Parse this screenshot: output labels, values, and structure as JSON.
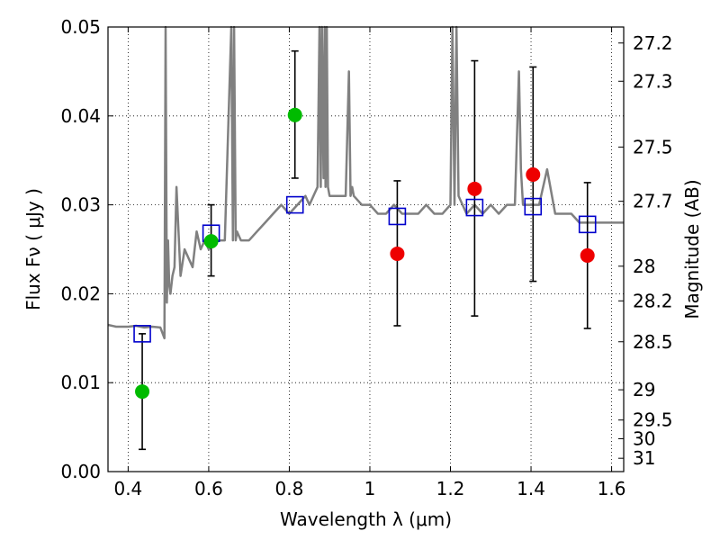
{
  "chart_data": {
    "type": "scatter",
    "title": "",
    "xlabel": "Wavelength  λ (μm)",
    "ylabel": "Flux  Fν  ( μJy )",
    "ylabel_right": "Magnitude (AB)",
    "xlim": [
      0.35,
      1.63
    ],
    "ylim": [
      0.0,
      0.05
    ],
    "grid": true,
    "x_ticks": [
      0.4,
      0.6,
      0.8,
      1.0,
      1.2,
      1.4,
      1.6
    ],
    "x_tick_labels": [
      "0.4",
      "0.6",
      "0.8",
      "1",
      "1.2",
      "1.4",
      "1.6"
    ],
    "y_ticks": [
      0.0,
      0.01,
      0.02,
      0.03,
      0.04,
      0.05
    ],
    "y_tick_labels": [
      "0.00",
      "0.01",
      "0.02",
      "0.03",
      "0.04",
      "0.05"
    ],
    "right_axis_ticks": [
      {
        "label": "27.2",
        "flux": 0.0482
      },
      {
        "label": "27.3",
        "flux": 0.0439
      },
      {
        "label": "27.5",
        "flux": 0.0365
      },
      {
        "label": "27.7",
        "flux": 0.0304
      },
      {
        "label": "28",
        "flux": 0.0231
      },
      {
        "label": "28.2",
        "flux": 0.0192
      },
      {
        "label": "28.5",
        "flux": 0.0146
      },
      {
        "label": "29",
        "flux": 0.0092
      },
      {
        "label": "29.5",
        "flux": 0.0058
      },
      {
        "label": "30",
        "flux": 0.0037
      },
      {
        "label": "31",
        "flux": 0.0015
      }
    ],
    "series": [
      {
        "name": "model spectrum",
        "kind": "line",
        "color": "#808080",
        "x": [
          0.35,
          0.37,
          0.4,
          0.42,
          0.44,
          0.46,
          0.48,
          0.49,
          0.493,
          0.496,
          0.499,
          0.502,
          0.505,
          0.51,
          0.515,
          0.52,
          0.53,
          0.54,
          0.55,
          0.56,
          0.57,
          0.58,
          0.59,
          0.6,
          0.62,
          0.64,
          0.656,
          0.66,
          0.663,
          0.667,
          0.67,
          0.68,
          0.7,
          0.72,
          0.74,
          0.76,
          0.78,
          0.8,
          0.82,
          0.84,
          0.85,
          0.86,
          0.87,
          0.875,
          0.878,
          0.881,
          0.885,
          0.888,
          0.89,
          0.893,
          0.896,
          0.9,
          0.92,
          0.94,
          0.948,
          0.952,
          0.956,
          0.96,
          0.98,
          1.0,
          1.02,
          1.04,
          1.06,
          1.08,
          1.1,
          1.12,
          1.14,
          1.16,
          1.18,
          1.2,
          1.205,
          1.21,
          1.215,
          1.22,
          1.24,
          1.26,
          1.28,
          1.3,
          1.32,
          1.34,
          1.36,
          1.37,
          1.375,
          1.38,
          1.4,
          1.42,
          1.44,
          1.46,
          1.48,
          1.5,
          1.52,
          1.54,
          1.56,
          1.58,
          1.6,
          1.63
        ],
        "y": [
          0.0165,
          0.0163,
          0.0163,
          0.0164,
          0.0162,
          0.0163,
          0.0162,
          0.015,
          0.05,
          0.019,
          0.026,
          0.021,
          0.02,
          0.022,
          0.023,
          0.032,
          0.022,
          0.025,
          0.024,
          0.023,
          0.027,
          0.025,
          0.026,
          0.025,
          0.026,
          0.026,
          0.05,
          0.026,
          0.05,
          0.026,
          0.027,
          0.026,
          0.026,
          0.027,
          0.028,
          0.029,
          0.03,
          0.029,
          0.03,
          0.031,
          0.03,
          0.031,
          0.032,
          0.05,
          0.032,
          0.05,
          0.033,
          0.05,
          0.032,
          0.05,
          0.032,
          0.031,
          0.031,
          0.031,
          0.045,
          0.031,
          0.032,
          0.031,
          0.03,
          0.03,
          0.029,
          0.029,
          0.03,
          0.029,
          0.029,
          0.029,
          0.03,
          0.029,
          0.029,
          0.03,
          0.05,
          0.03,
          0.05,
          0.031,
          0.029,
          0.03,
          0.029,
          0.03,
          0.029,
          0.03,
          0.03,
          0.045,
          0.034,
          0.03,
          0.03,
          0.03,
          0.034,
          0.029,
          0.029,
          0.029,
          0.028,
          0.028,
          0.028,
          0.028,
          0.028,
          0.028
        ]
      },
      {
        "name": "model photometry",
        "kind": "open-square",
        "color": "#0000cc",
        "x": [
          0.435,
          0.606,
          0.814,
          1.068,
          1.26,
          1.405,
          1.54
        ],
        "y": [
          0.0155,
          0.0268,
          0.03,
          0.0287,
          0.0297,
          0.0298,
          0.0278
        ]
      },
      {
        "name": "observed (green)",
        "kind": "filled-circle",
        "color": "#00bb00",
        "x": [
          0.435,
          0.606,
          0.814
        ],
        "y": [
          0.009,
          0.0259,
          0.0401
        ],
        "error_low": [
          0.0025,
          0.022,
          0.033
        ],
        "error_high": [
          0.0155,
          0.03,
          0.0473
        ]
      },
      {
        "name": "observed (red)",
        "kind": "filled-circle",
        "color": "#ee0000",
        "x": [
          1.068,
          1.26,
          1.405,
          1.54
        ],
        "y": [
          0.0245,
          0.0318,
          0.0334,
          0.0243
        ],
        "error_low": [
          0.0164,
          0.0175,
          0.0214,
          0.0161
        ],
        "error_high": [
          0.0327,
          0.0462,
          0.0455,
          0.0325
        ]
      }
    ]
  }
}
